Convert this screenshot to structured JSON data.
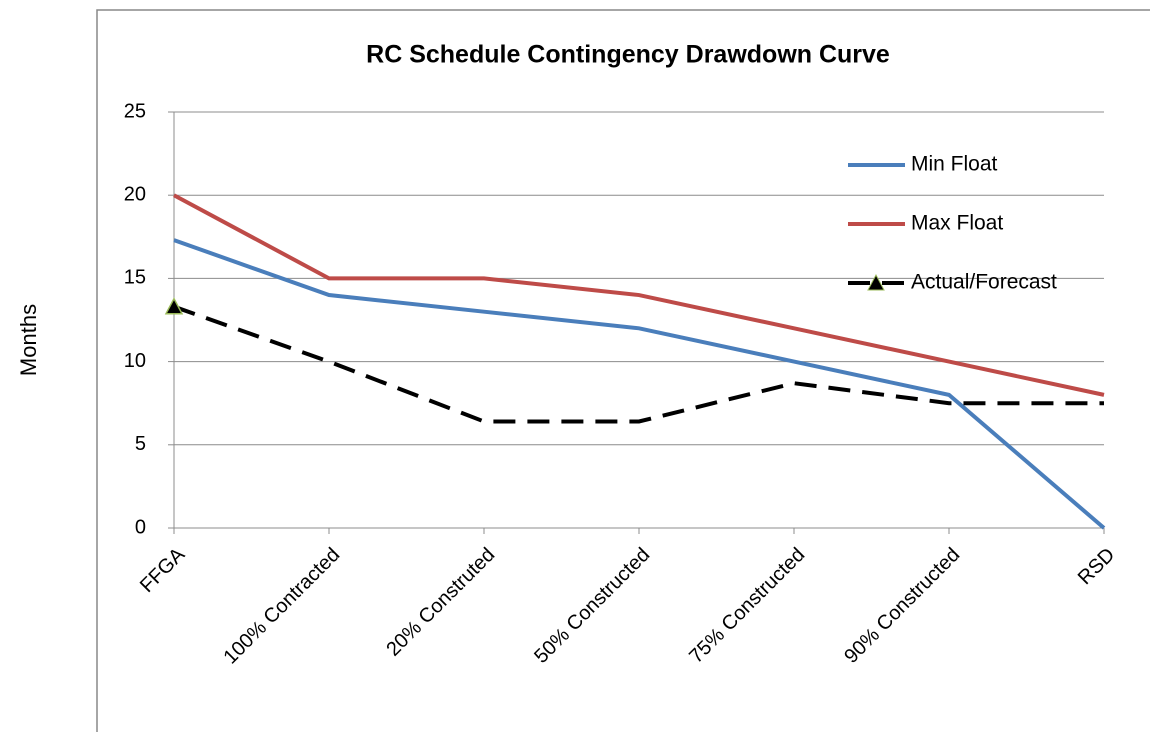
{
  "chart_data": {
    "type": "line",
    "title": "RC Schedule Contingency Drawdown Curve",
    "y_label": "Months",
    "categories": [
      "FFGA",
      "100% Contracted",
      "20% Construted",
      "50% Constructed",
      "75% Constructed",
      "90% Constructed",
      "RSD"
    ],
    "series": [
      {
        "name": "Min Float",
        "color": "#4a7ebb",
        "dash": false,
        "values": [
          17.3,
          14,
          13,
          12,
          10,
          8,
          0
        ]
      },
      {
        "name": "Max Float",
        "color": "#be4b48",
        "dash": false,
        "values": [
          20,
          15,
          15,
          14,
          12,
          10,
          8
        ]
      },
      {
        "name": "Actual/Forecast",
        "color": "#000000",
        "dash": true,
        "marker": "triangle",
        "values": [
          13.3,
          10,
          6.4,
          6.4,
          8.7,
          7.5,
          7.5
        ]
      }
    ],
    "ylim": [
      0,
      25
    ],
    "yticks": [
      0,
      5,
      10,
      15,
      20,
      25
    ],
    "grid": true,
    "legend": "upper right"
  }
}
